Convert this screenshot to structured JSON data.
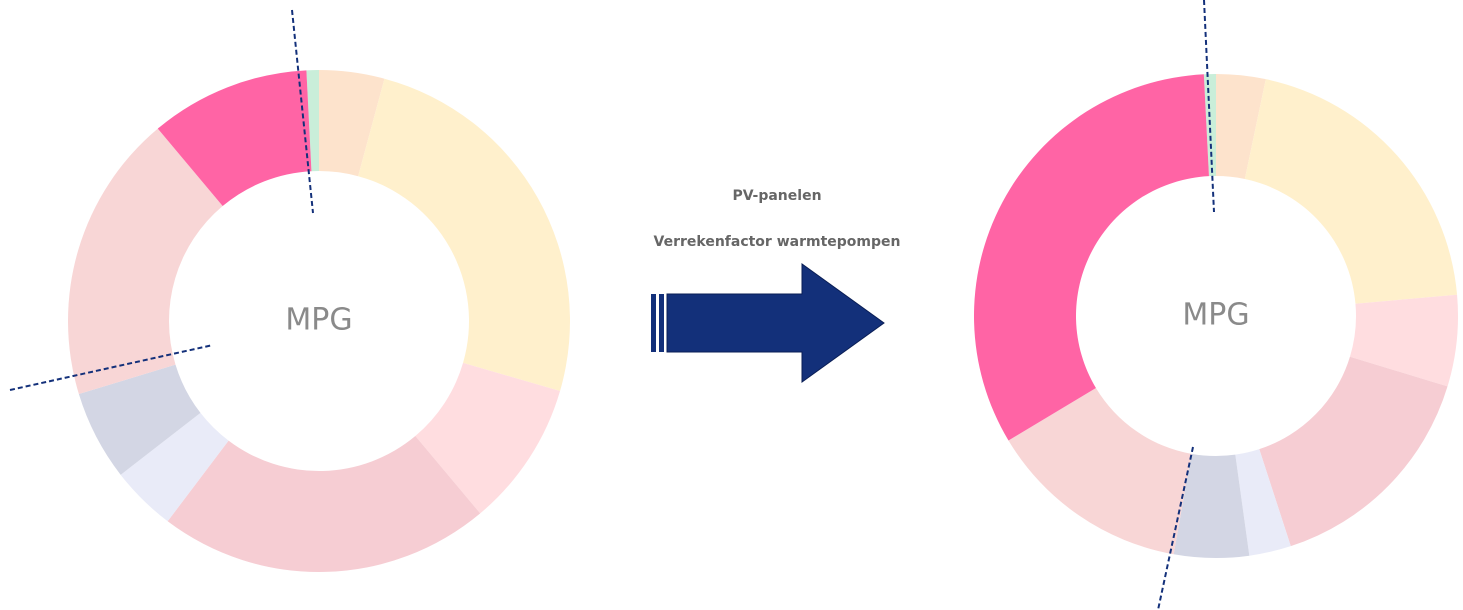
{
  "chart_data": [
    {
      "type": "pie",
      "center_label": "MPG",
      "values": [
        0.8,
        4.2,
        25.3,
        9.4,
        21.4,
        4.2,
        5.8,
        18.6,
        10.3
      ],
      "colors": [
        "#c9eed9",
        "#fde3cc",
        "#fff0cc",
        "#ffdde0",
        "#f6cdd3",
        "#e9ebf8",
        "#d3d6e4",
        "#f8d6d6",
        "#ff64a5"
      ]
    },
    {
      "type": "pie",
      "center_label": "MPG",
      "values": [
        0.8,
        3.3,
        20.3,
        6.1,
        15.3,
        2.8,
        5.0,
        13.6,
        32.8
      ],
      "colors": [
        "#c9eed9",
        "#fde3cc",
        "#fff0cc",
        "#ffdde0",
        "#f6cdd3",
        "#e9ebf8",
        "#d3d6e4",
        "#f8d6d6",
        "#ff64a5"
      ]
    }
  ],
  "arrow_labels": [
    "PV-panelen",
    "Verrekenfactor warmtepompen"
  ]
}
